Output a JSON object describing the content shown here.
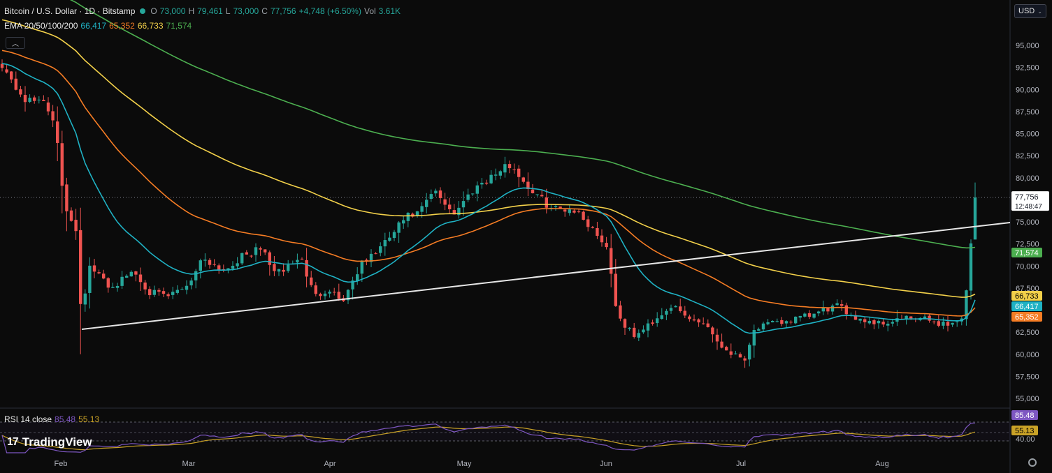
{
  "header": {
    "symbol": "Bitcoin / U.S. Dollar · 1D · Bitstamp",
    "o_label": "O",
    "o_value": "73,000",
    "h_label": "H",
    "h_value": "79,461",
    "l_label": "L",
    "l_value": "73,000",
    "c_label": "C",
    "c_value": "77,756",
    "change": "+4,748 (+6.50%)",
    "vol_label": "Vol",
    "vol_value": "3.61K",
    "ema_label": "EMA 20/50/100/200",
    "ema20": "66,417",
    "ema50": "65,352",
    "ema100": "66,733",
    "ema200": "71,574",
    "currency": "USD"
  },
  "rsi_header": {
    "label": "RSI 14 close",
    "rsi": "85.48",
    "ma": "55.13"
  },
  "branding": {
    "name": "TradingView"
  },
  "colors": {
    "up": "#26a69a",
    "down": "#ef5350",
    "ema20": "#1fb2c4",
    "ema50": "#f57c24",
    "ema100": "#f2d04a",
    "ema200": "#4caf50",
    "rsi": "#7e57c2",
    "rsi_ma": "#c9a227"
  },
  "chart_data": {
    "type": "candlestick",
    "x_axis": {
      "labels": [
        "Feb",
        "Mar",
        "Apr",
        "May",
        "Jun",
        "Jul",
        "Aug"
      ]
    },
    "y_axis": {
      "ticks": [
        "95,000",
        "92,500",
        "90,000",
        "87,500",
        "85,000",
        "82,500",
        "80,000",
        "75,000",
        "72,500",
        "70,000",
        "67,500",
        "62,500",
        "60,000",
        "57,500",
        "55,000"
      ]
    },
    "ylim": [
      54000,
      97000
    ],
    "last_price": {
      "value": "77,756",
      "countdown": "12:48:47"
    },
    "badges": [
      {
        "name": "EMA 200",
        "value": "71,574",
        "color": "#4caf50"
      },
      {
        "name": "EMA 100",
        "value": "66,733",
        "color": "#f2d04a"
      },
      {
        "name": "EMA 20",
        "value": "66,417",
        "color": "#1fb2c4"
      },
      {
        "name": "EMA 50",
        "value": "65,352",
        "color": "#f57c24"
      }
    ],
    "rsi": {
      "ticks": [
        "40.00"
      ],
      "badges": [
        {
          "value": "85.48",
          "color": "#7e57c2"
        },
        {
          "value": "55.13",
          "color": "#c9a227"
        }
      ]
    }
  }
}
